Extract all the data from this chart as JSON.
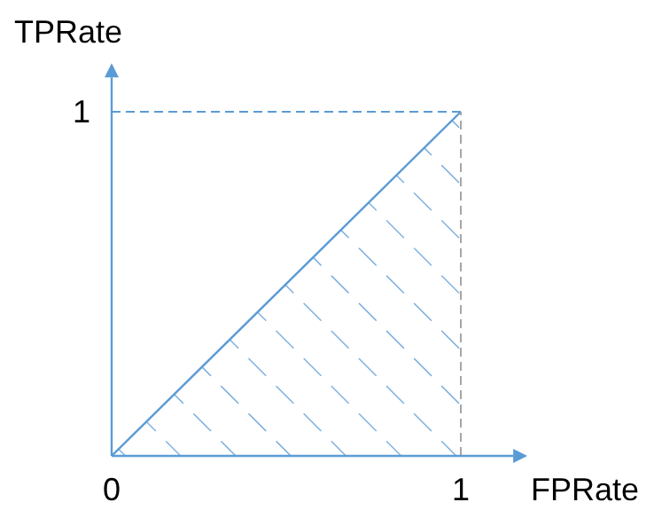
{
  "chart_data": {
    "type": "area",
    "xlabel": "FPRate",
    "ylabel": "TPRate",
    "x": [
      0,
      1
    ],
    "series": [
      {
        "color": "#5b9bd5",
        "values": [
          0,
          1
        ]
      }
    ],
    "xlim": [
      0,
      1.15
    ],
    "ylim": [
      0,
      1.1
    ],
    "xticks": [
      0,
      1
    ],
    "yticks": [
      1
    ],
    "ref_lines": [
      {
        "axis": "x",
        "value": 1,
        "color": "#a6a6a6",
        "line_style": "dashed"
      },
      {
        "axis": "y",
        "value": 1,
        "color": "#5b9bd5",
        "line_style": "dashed"
      }
    ],
    "grid": false
  }
}
